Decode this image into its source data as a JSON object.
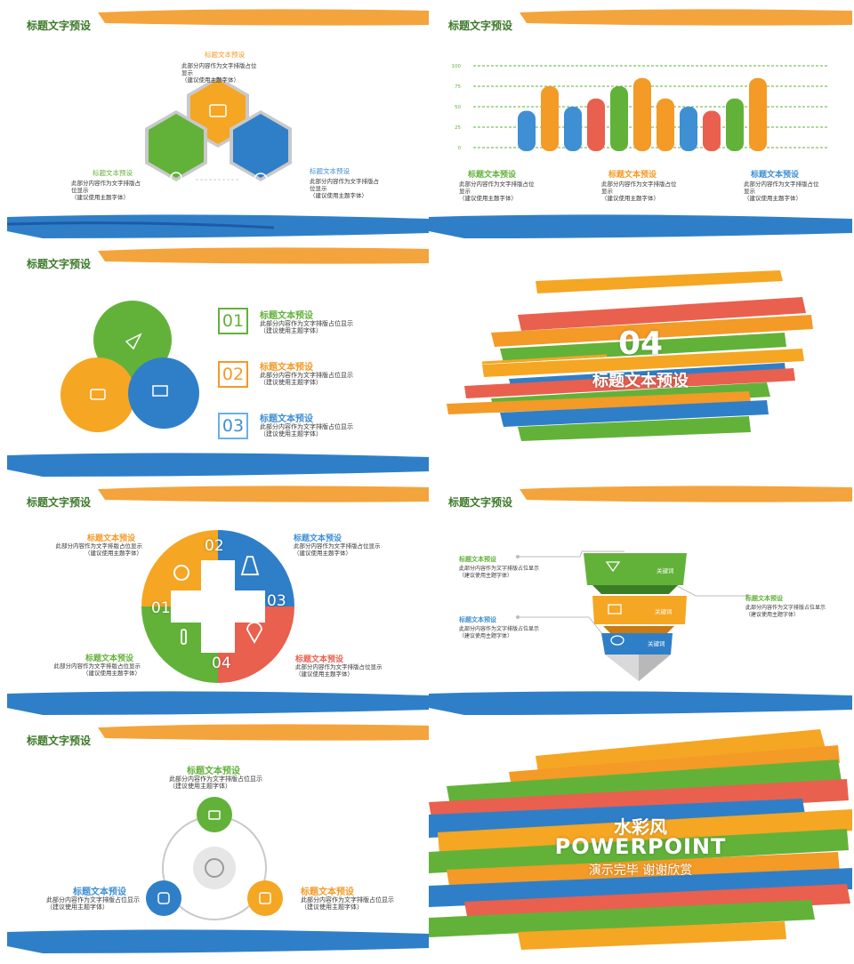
{
  "slide_title": "标题文字预设",
  "heading": "标题文本预设",
  "body": "此部分内容作为文字排版占位显示",
  "body_note": "（建议使用主题字体）",
  "colors": {
    "orange": "#f39a27",
    "green": "#62b23a",
    "blue": "#2f7fc8",
    "red": "#e9604e",
    "dark_title": "#3d7a2a"
  },
  "slide1": {
    "top_label": "标题文本预设",
    "top_text": "此部分内容作为文字排版占位显示",
    "top_note": "（建议使用主题字体）",
    "left_label": "标题文本预设",
    "left_text": "此部分内容作为文字排版占位显示",
    "left_note": "（建议使用主题字体）",
    "right_label": "标题文本预设",
    "right_text": "此部分内容作为文字排版占位显示",
    "right_note": "（建议使用主题字体）",
    "icons": [
      "briefcase-icon",
      "person-icon",
      "coins-icon"
    ]
  },
  "slide2": {
    "labels": [
      "标题文本预设",
      "标题文本预设",
      "标题文本预设"
    ],
    "text": "此部分内容作为文字排版占位显示",
    "note": "（建议使用主题字体）"
  },
  "chart_data": {
    "type": "bar",
    "yticks": [
      "100",
      "75",
      "50",
      "25",
      "0"
    ],
    "ylim": [
      0,
      100
    ],
    "values": [
      45,
      75,
      50,
      60,
      75,
      85,
      60,
      50,
      45,
      60,
      85
    ],
    "bar_colors": [
      "#3f8fd4",
      "#f39a27",
      "#3f8fd4",
      "#e9604e",
      "#62b23a",
      "#f39a27",
      "#f39a27",
      "#3f8fd4",
      "#e9604e",
      "#62b23a",
      "#f39a27"
    ]
  },
  "slide3": {
    "items": [
      {
        "num": "01",
        "label": "标题文本预设",
        "text": "此部分内容作为文字排版占位显示",
        "note": "（建议使用主题字体）"
      },
      {
        "num": "02",
        "label": "标题文本预设",
        "text": "此部分内容作为文字排版占位显示",
        "note": "（建议使用主题字体）"
      },
      {
        "num": "03",
        "label": "标题文本预设",
        "text": "此部分内容作为文字排版占位显示",
        "note": "（建议使用主题字体）"
      }
    ],
    "icons": [
      "send-icon",
      "camera-icon",
      "monitor-icon"
    ]
  },
  "slide4": {
    "number": "04",
    "title": "标题文本预设"
  },
  "slide5": {
    "segments": [
      "01",
      "02",
      "03",
      "04"
    ],
    "tl_label": "标题文本预设",
    "tr_label": "标题文本预设",
    "bl_label": "标题文本预设",
    "br_label": "标题文本预设",
    "text": "此部分内容作为文字排版占位显示",
    "note": "（建议使用主题字体）",
    "icons": [
      "radiation-icon",
      "flask-icon",
      "thermometer-icon",
      "location-pin-icon"
    ]
  },
  "slide6": {
    "l1_label": "标题文本预设",
    "l2_label": "标题文本预设",
    "r_label": "标题文本预设",
    "text": "此部分内容作为文字排版占位显示",
    "note": "（建议使用主题字体）",
    "layer_labels": [
      "关键词",
      "关键词",
      "关键词"
    ],
    "icons": [
      "diamond-icon",
      "monitor-icon",
      "chat-icon"
    ]
  },
  "slide7": {
    "top_label": "标题文本预设",
    "left_label": "标题文本预设",
    "right_label": "标题文本预设",
    "text": "此部分内容作为文字排版占位显示",
    "note": "（建议使用主题字体）",
    "icons": [
      "lock-icon",
      "signal-icon",
      "instagram-icon",
      "linkedin-icon"
    ]
  },
  "slide8": {
    "line1": "水彩风",
    "line2": "POWERPOINT",
    "line3": "演示完毕 谢谢欣赏"
  }
}
